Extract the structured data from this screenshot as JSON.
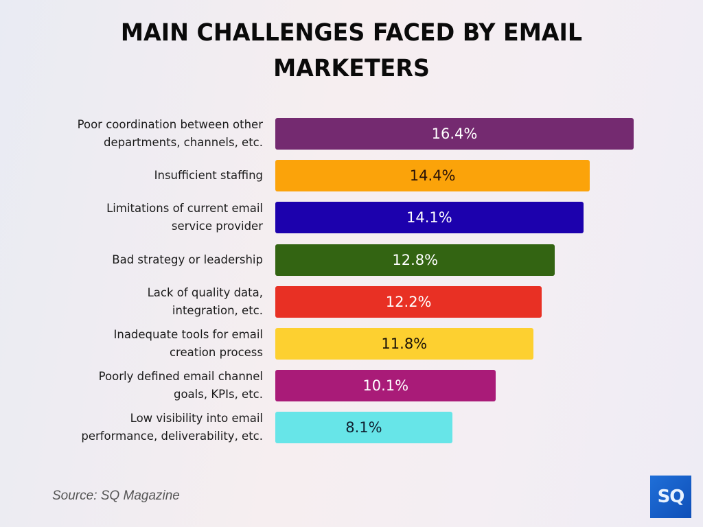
{
  "title": "MAIN CHALLENGES FACED BY EMAIL MARKETERS",
  "source": "Source: SQ Magazine",
  "logo_text": "SQ",
  "chart_data": {
    "type": "bar",
    "orientation": "horizontal",
    "title": "MAIN CHALLENGES FACED BY EMAIL MARKETERS",
    "xlabel": "",
    "ylabel": "",
    "grid": false,
    "legend": null,
    "categories": [
      "Poor coordination between other departments, channels, etc.",
      "Insufficient staffing",
      "Limitations of current email service provider",
      "Bad strategy or leadership",
      "Lack of quality data, integration, etc.",
      "Inadequate tools for email creation process",
      "Poorly defined email channel goals, KPIs, etc.",
      "Low visibility into email performance, deliverability, etc."
    ],
    "values": [
      16.4,
      14.4,
      14.1,
      12.8,
      12.2,
      11.8,
      10.1,
      8.1
    ],
    "value_labels": [
      "16.4%",
      "14.4%",
      "14.1%",
      "12.8%",
      "12.2%",
      "11.8%",
      "10.1%",
      "8.1%"
    ],
    "colors": [
      "#742a70",
      "#fba30a",
      "#1c01ad",
      "#336412",
      "#e83024",
      "#fdd030",
      "#a91b78",
      "#67e5e8"
    ],
    "label_colors": [
      "#ffffff",
      "#2a1208",
      "#ffffff",
      "#ffffff",
      "#ffffff",
      "#1a1208",
      "#ffffff",
      "#102030"
    ],
    "xlim": [
      0,
      16.4
    ],
    "source": "Source: SQ Magazine"
  }
}
